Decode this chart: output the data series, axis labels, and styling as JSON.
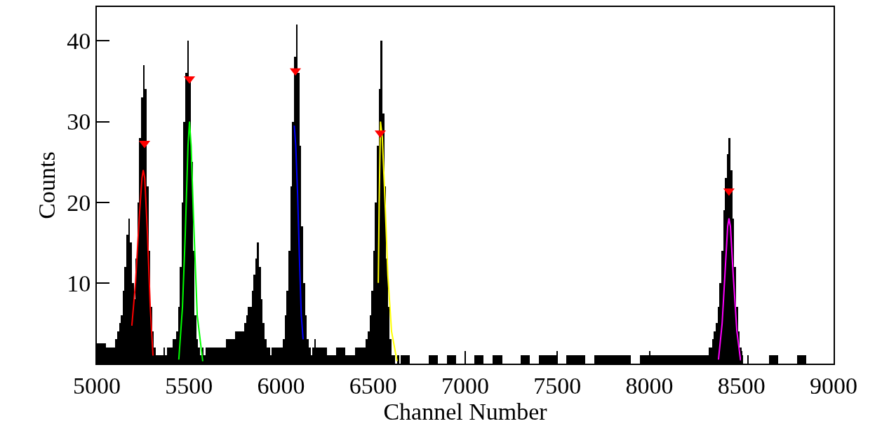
{
  "chart_data": {
    "type": "histogram",
    "xlabel": "Channel Number",
    "ylabel": "Counts",
    "color": "#000000",
    "bins": [
      5000,
      5050,
      5100,
      5110,
      5120,
      5130,
      5140,
      5150,
      5160,
      5170,
      5180,
      5190,
      5200,
      5210,
      5220,
      5230,
      5240,
      5250,
      5260,
      5270,
      5280,
      5290,
      5300,
      5310,
      5320,
      5330,
      5340,
      5350,
      5360,
      5370,
      5380,
      5390,
      5400,
      5410,
      5420,
      5430,
      5440,
      5450,
      5460,
      5470,
      5480,
      5490,
      5500,
      5510,
      5520,
      5530,
      5540,
      5550,
      5560,
      5570,
      5580,
      5590,
      5600,
      5650,
      5700,
      5750,
      5800,
      5810,
      5820,
      5830,
      5840,
      5850,
      5860,
      5870,
      5880,
      5890,
      5900,
      5910,
      5920,
      5930,
      5940,
      5950,
      6000,
      6010,
      6020,
      6030,
      6040,
      6050,
      6060,
      6070,
      6080,
      6090,
      6100,
      6110,
      6120,
      6130,
      6140,
      6150,
      6160,
      6170,
      6180,
      6190,
      6200,
      6250,
      6300,
      6350,
      6400,
      6450,
      6460,
      6470,
      6480,
      6490,
      6500,
      6510,
      6520,
      6530,
      6540,
      6550,
      6560,
      6570,
      6580,
      6590,
      6600,
      6610,
      6620,
      6630,
      6640,
      6650,
      6700,
      6800,
      6850,
      6900,
      6950,
      7050,
      7100,
      7150,
      7200,
      7300,
      7350,
      7400,
      7450,
      7500,
      7550,
      7600,
      7650,
      7700,
      7750,
      7800,
      7850,
      7900,
      7950,
      8000,
      8050,
      8100,
      8150,
      8200,
      8250,
      8300,
      8310,
      8320,
      8330,
      8340,
      8350,
      8360,
      8370,
      8380,
      8390,
      8400,
      8410,
      8420,
      8430,
      8440,
      8450,
      8460,
      8470,
      8480,
      8490,
      8500,
      8510,
      8530,
      8540,
      8650,
      8700,
      8800,
      8850
    ],
    "values": [
      2.5,
      2,
      3,
      4,
      5,
      6,
      9,
      12,
      16,
      18,
      15,
      10,
      8,
      13,
      20,
      28,
      33,
      37,
      34,
      22,
      14,
      7,
      4,
      2,
      1,
      1,
      1,
      1,
      2,
      1,
      2,
      2,
      2,
      3,
      3,
      4,
      7,
      12,
      20,
      30,
      36,
      40,
      35,
      25,
      14,
      6,
      3,
      2,
      1,
      2,
      1,
      2,
      2,
      2,
      3,
      4,
      5,
      6,
      7,
      7,
      9,
      11,
      13,
      15,
      12,
      8,
      5,
      3,
      2,
      2,
      1,
      2,
      2,
      3,
      6,
      9,
      14,
      22,
      30,
      38,
      42,
      36,
      27,
      17,
      10,
      6,
      3,
      2,
      1,
      2,
      3,
      2,
      2,
      1,
      2,
      1,
      2,
      2,
      3,
      4,
      6,
      9,
      14,
      20,
      27,
      34,
      40,
      31,
      22,
      13,
      7,
      3,
      1,
      1,
      0,
      1,
      0,
      1,
      0,
      1,
      0,
      1,
      0,
      1,
      0,
      1,
      0,
      1,
      0,
      1,
      1,
      0,
      1,
      1,
      0,
      1,
      1,
      1,
      1,
      0,
      1,
      1,
      1,
      1,
      1,
      1,
      1,
      1,
      1,
      2,
      2,
      3,
      4,
      5,
      7,
      10,
      14,
      19,
      23,
      26,
      28,
      24,
      18,
      12,
      7,
      4,
      2,
      1,
      0,
      1,
      0,
      1,
      0,
      1
    ],
    "series": [
      {
        "type": "line",
        "color": "#ff0000",
        "x": [
          5190,
          5210,
          5230,
          5245,
          5252,
          5260,
          5275,
          5290,
          5305
        ],
        "values": [
          4.7,
          10,
          18,
          23,
          24,
          23,
          16,
          7,
          1
        ]
      },
      {
        "type": "line",
        "color": "#00ff00",
        "x": [
          5445,
          5465,
          5480,
          5495,
          5503,
          5512,
          5525,
          5545,
          5575
        ],
        "values": [
          0.5,
          7,
          16,
          27,
          30,
          27,
          18,
          6,
          0.3
        ]
      },
      {
        "type": "line",
        "color": "#0000ff",
        "x": [
          6072,
          6080,
          6090,
          6100,
          6110,
          6120
        ],
        "values": [
          29.5,
          27,
          21,
          13,
          6,
          3
        ]
      },
      {
        "type": "line",
        "color": "#ffff00",
        "x": [
          6528,
          6533,
          6540,
          6550,
          6565,
          6580,
          6600,
          6630
        ],
        "values": [
          10,
          20,
          30,
          28,
          20,
          11,
          4,
          0.3
        ]
      },
      {
        "type": "line",
        "color": "#ff00ff",
        "x": [
          8375,
          8395,
          8410,
          8425,
          8432,
          8440,
          8455,
          8475,
          8495
        ],
        "values": [
          0.5,
          5,
          11,
          17,
          18,
          17,
          11,
          4,
          0.4
        ]
      },
      {
        "type": "scatter",
        "color": "#ff0000",
        "marker": "triangle",
        "x": [
          5259,
          5503,
          6078,
          6539,
          8432
        ],
        "values": [
          27.3,
          35.3,
          36.3,
          28.6,
          21.4
        ]
      }
    ],
    "xlim": [
      5000,
      9000
    ],
    "xticks": [
      5000,
      5500,
      6000,
      6500,
      7000,
      7500,
      8000,
      8500,
      9000
    ],
    "ylim": [
      0,
      44.2
    ],
    "yticks": [
      {
        "value": 0,
        "label": null
      },
      10,
      20,
      30,
      40
    ]
  }
}
